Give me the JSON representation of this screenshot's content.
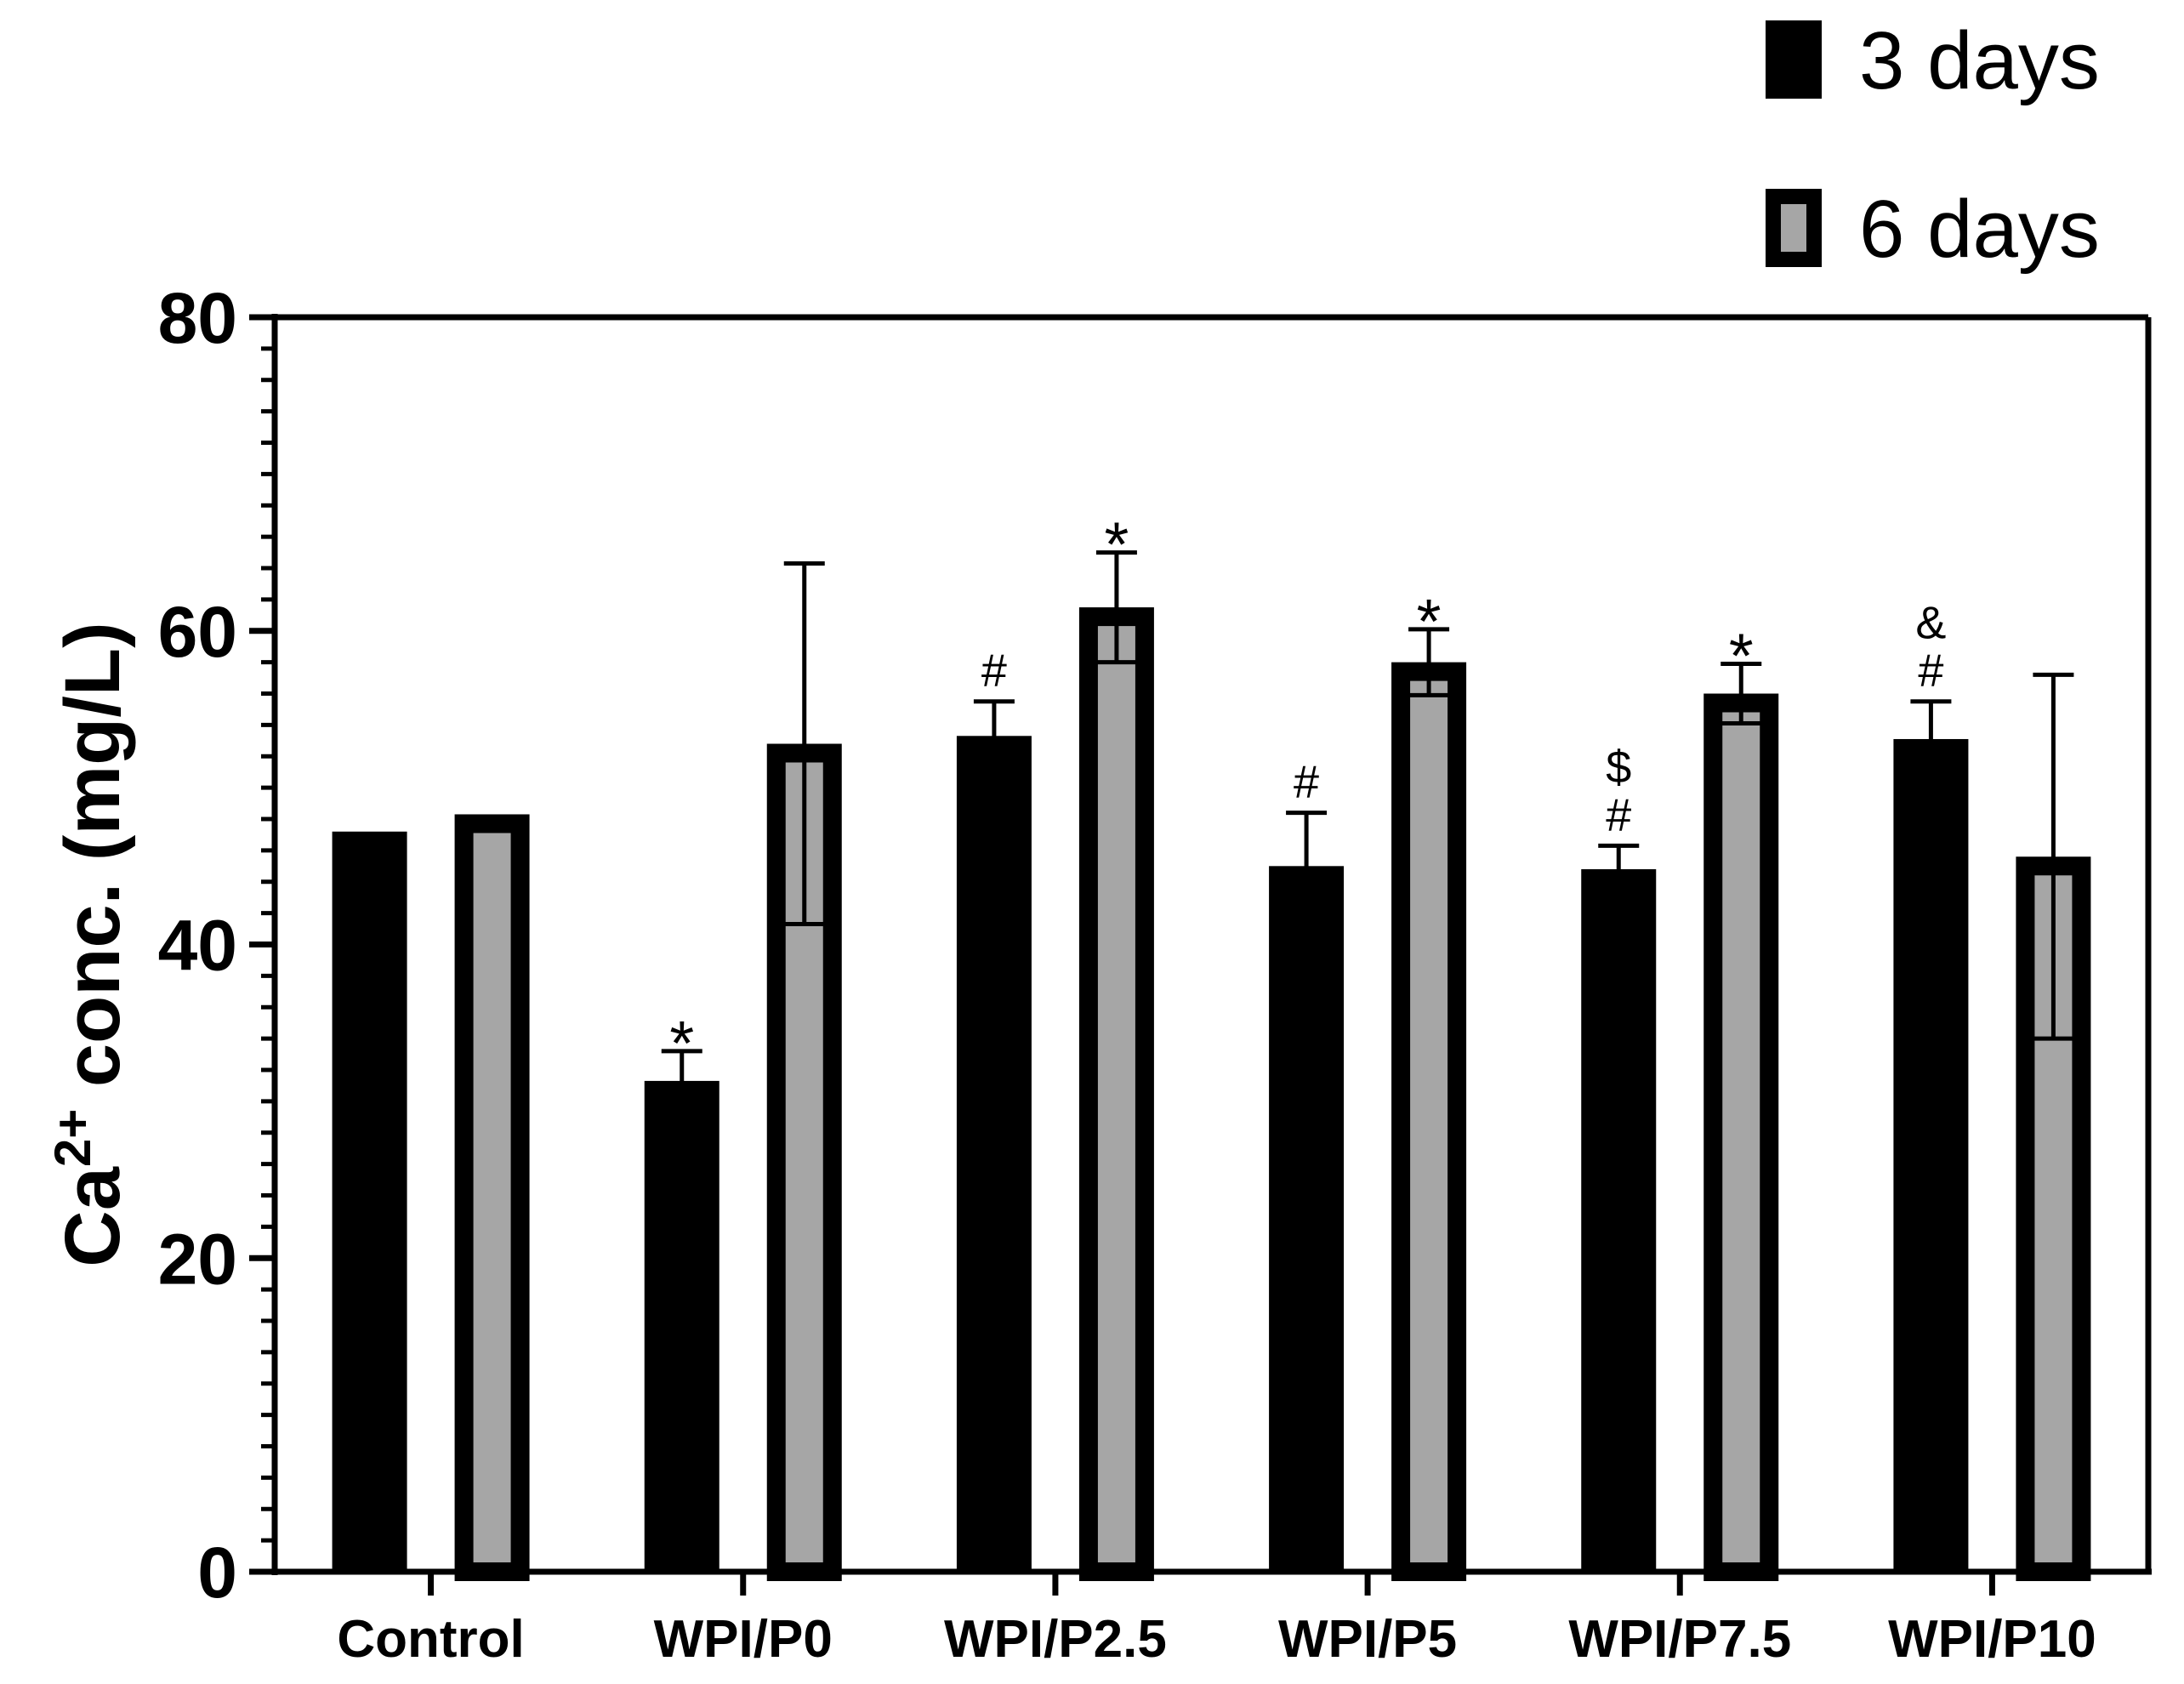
{
  "chart_data": {
    "type": "bar",
    "title": "",
    "xlabel": "",
    "ylabel_parts": [
      "Ca",
      "2+",
      " conc. (mg/L)"
    ],
    "ylim": [
      0,
      80
    ],
    "yticks": [
      0,
      20,
      40,
      60,
      80
    ],
    "minor_ticks_per_major": 10,
    "categories": [
      "Control",
      "WPI/P0",
      "WPI/P2.5",
      "WPI/P5",
      "WPI/P7.5",
      "WPI/P10"
    ],
    "series": [
      {
        "name": "3 days",
        "fill": "#000000",
        "values": [
          47.2,
          31.3,
          53.3,
          45.0,
          44.8,
          53.1
        ],
        "errors": [
          0,
          1.9,
          2.2,
          3.4,
          1.5,
          2.4
        ],
        "annotations": [
          [],
          [
            "*"
          ],
          [
            "#"
          ],
          [
            "#"
          ],
          [
            "#",
            "$"
          ],
          [
            "#",
            "&"
          ]
        ]
      },
      {
        "name": "6 days",
        "fill": "#a6a6a6",
        "stroke": "#000000",
        "values": [
          48.3,
          52.8,
          61.5,
          58.0,
          56.0,
          45.6
        ],
        "errors": [
          0,
          11.5,
          3.5,
          2.1,
          1.9,
          11.6
        ],
        "annotations": [
          [],
          [],
          [
            "*"
          ],
          [
            "*"
          ],
          [
            "*"
          ],
          []
        ]
      }
    ],
    "legend": {
      "position": "top-right",
      "entries": [
        "3 days",
        "6 days"
      ]
    }
  }
}
